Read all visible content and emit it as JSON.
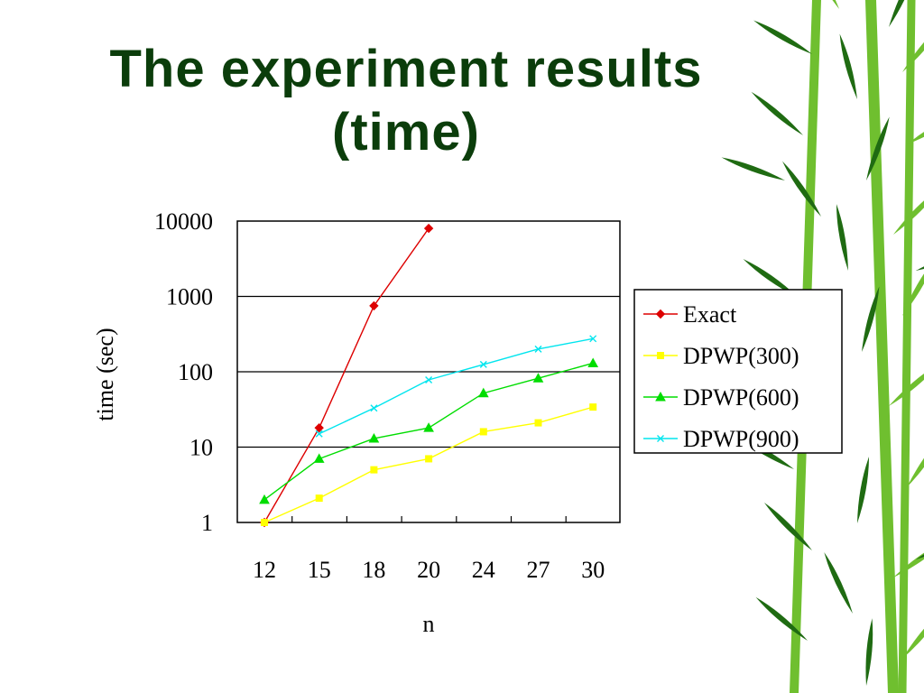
{
  "slide": {
    "title_line1": "The experiment results",
    "title_line2": "(time)"
  },
  "colors": {
    "title": "#0b3d0b",
    "exact": "#dd0000",
    "dpwp300": "#ffff00",
    "dpwp600": "#00dd00",
    "dpwp900": "#00e5ee",
    "bamboo_dark": "#1f6b12",
    "bamboo_light": "#6fbf2f"
  },
  "chart_data": {
    "type": "line",
    "categories": [
      "12",
      "15",
      "18",
      "20",
      "24",
      "27",
      "30"
    ],
    "xlabel": "n",
    "ylabel": "time (sec)",
    "yscale": "log",
    "ylim": [
      1,
      10000
    ],
    "yticks": [
      "1",
      "10",
      "100",
      "1000",
      "10000"
    ],
    "grid": "horizontal",
    "legend_position": "right",
    "series": [
      {
        "name": "Exact",
        "values": [
          1,
          18,
          750,
          8000,
          null,
          null,
          null
        ],
        "marker": "diamond",
        "color": "#dd0000"
      },
      {
        "name": "DPWP(300)",
        "values": [
          1,
          2.1,
          5,
          7,
          16,
          21,
          34
        ],
        "marker": "square",
        "color": "#ffff00"
      },
      {
        "name": "DPWP(600)",
        "values": [
          2,
          7,
          13,
          18,
          52,
          82,
          130
        ],
        "marker": "triangle",
        "color": "#00dd00"
      },
      {
        "name": "DPWP(900)",
        "values": [
          null,
          15,
          33,
          78,
          125,
          200,
          275
        ],
        "marker": "x",
        "color": "#00e5ee"
      }
    ]
  }
}
